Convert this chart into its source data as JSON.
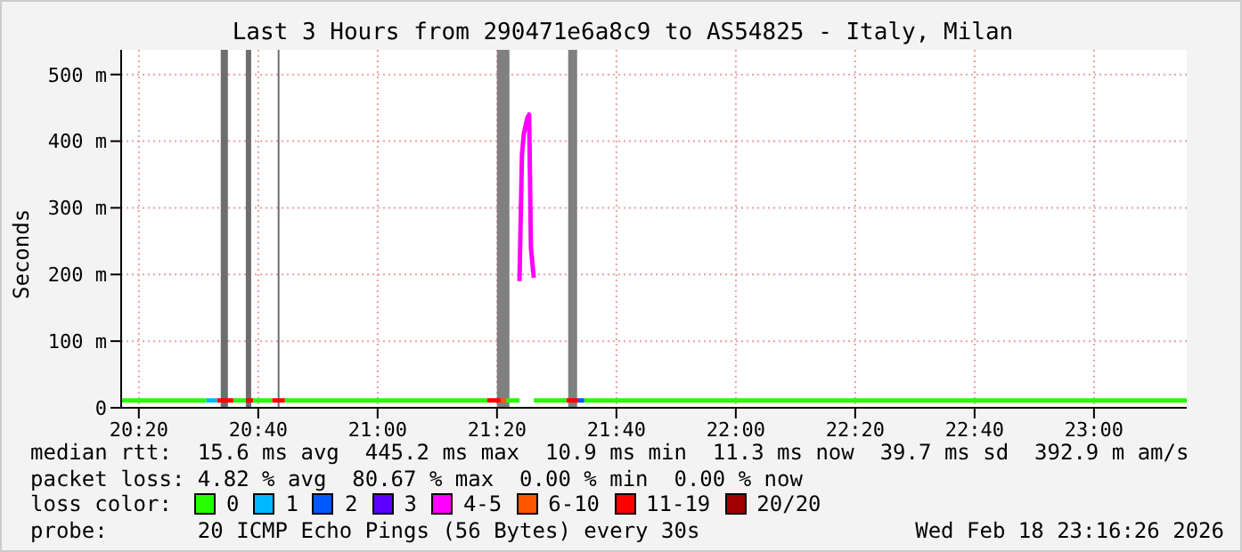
{
  "chart_data": {
    "type": "line",
    "title": "Last 3 Hours from 290471e6a8c9 to AS54825 - Italy, Milan",
    "ylabel": "Seconds",
    "legend_title": "loss color:",
    "legend": "bottom",
    "grid": true,
    "marker": "none",
    "line_style": "solid",
    "xlim": [
      20.284,
      23.259
    ],
    "xticks": [
      {
        "value": 20.3333,
        "label": "20:20"
      },
      {
        "value": 20.6667,
        "label": "20:40"
      },
      {
        "value": 21,
        "label": "21:00"
      },
      {
        "value": 21.3333,
        "label": "21:20"
      },
      {
        "value": 21.6667,
        "label": "21:40"
      },
      {
        "value": 22,
        "label": "22:00"
      },
      {
        "value": 22.3333,
        "label": "22:20"
      },
      {
        "value": 22.6667,
        "label": "22:40"
      },
      {
        "value": 23,
        "label": "23:00"
      }
    ],
    "ylim": [
      0,
      537
    ],
    "yticks": [
      0,
      {
        "value": 100,
        "label": "100 m"
      },
      {
        "value": 200,
        "label": "200 m"
      },
      {
        "value": 300,
        "label": "300 m"
      },
      {
        "value": 400,
        "label": "400 m"
      },
      {
        "value": 500,
        "label": "500 m"
      }
    ],
    "bands": [
      {
        "axis": "x",
        "from": 20.562,
        "to": 20.582,
        "color": "#6e6e6e"
      },
      {
        "axis": "x",
        "from": 20.632,
        "to": 20.647,
        "color": "#6e6e6e"
      },
      {
        "axis": "x",
        "from": 20.721,
        "to": 20.726,
        "color": "#6e6e6e"
      },
      {
        "axis": "x",
        "from": 21.333,
        "to": 21.368,
        "color": "#808080"
      },
      {
        "axis": "x",
        "from": 21.532,
        "to": 21.557,
        "color": "#808080"
      }
    ],
    "series": [
      {
        "name": "0",
        "color": "#26ff00",
        "x": [
          20.284,
          20.522,
          20.523,
          20.597,
          20.632,
          20.633,
          20.652,
          20.706,
          20.707,
          20.741,
          21.306,
          21.307,
          21.358,
          21.396,
          21.397,
          21.436,
          21.527,
          21.528,
          21.577,
          23.259
        ],
        "values": [
          11,
          11,
          null,
          11,
          11,
          null,
          11,
          11,
          null,
          11,
          11,
          null,
          11,
          11,
          null,
          11,
          11,
          null,
          11,
          11
        ]
      },
      {
        "name": "1",
        "color": "#00b8ff",
        "x": [
          20.522,
          20.552
        ],
        "values": [
          11,
          11
        ]
      },
      {
        "name": "2",
        "color": "#0059ff",
        "x": [
          21.56,
          21.577
        ],
        "values": [
          11,
          11
        ]
      },
      {
        "name": "3",
        "color": "#5e00ff"
      },
      {
        "name": "4-5",
        "color": "#ff00ff",
        "x": [
          21.396,
          21.403,
          21.408,
          21.418,
          21.423,
          21.428,
          21.436
        ],
        "values": [
          190,
          380,
          410,
          435,
          440,
          240,
          195
        ]
      },
      {
        "name": "6-10",
        "color": "#ff5500",
        "x": [
          21.343,
          21.358
        ],
        "values": [
          11,
          11
        ]
      },
      {
        "name": "11-19",
        "color": "#ff0000",
        "x": [
          20.552,
          20.597,
          20.598,
          20.632,
          20.652,
          20.653,
          20.706,
          20.741,
          20.742,
          21.306,
          21.343,
          21.344,
          21.527,
          21.56
        ],
        "values": [
          11,
          11,
          null,
          11,
          11,
          null,
          11,
          11,
          null,
          11,
          11,
          null,
          11,
          11
        ]
      },
      {
        "name": "20/20",
        "color": "#a10000"
      }
    ],
    "annotations": [
      "median rtt:  15.6 ms avg  445.2 ms max  10.9 ms min  11.3 ms now  39.7 ms sd  392.9 m am/s",
      "packet loss: 4.82 % avg  80.67 % max  0.00 % min  0.00 % now",
      "probe:       20 ICMP Echo Pings (56 Bytes) every 30s",
      "Wed Feb 18 23:16:26 2026"
    ]
  }
}
